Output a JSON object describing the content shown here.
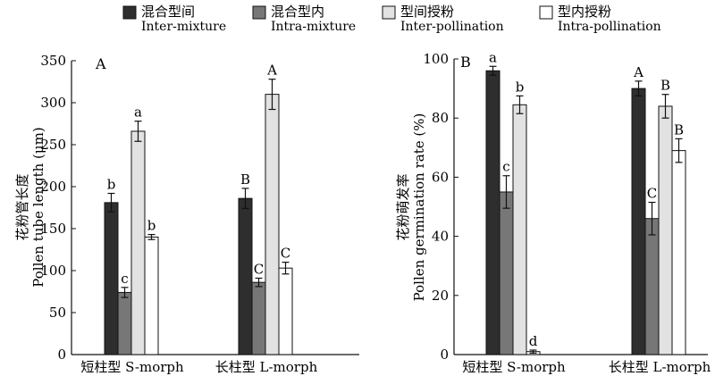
{
  "legend": [
    {
      "zh": "混合型间",
      "en": "Inter-mixture",
      "color": "#2e2e2e"
    },
    {
      "zh": "混合型内",
      "en": "Intra-mixture",
      "color": "#777777"
    },
    {
      "zh": "型间授粉",
      "en": "Inter-pollination",
      "color": "#e2e2e2"
    },
    {
      "zh": "型内授粉",
      "en": "Intra-pollination",
      "color": "#ffffff"
    }
  ],
  "chart_data": [
    {
      "type": "bar",
      "panel_label": "A",
      "ylabel_zh": "花粉管长度",
      "ylabel_en": "Pollen tube length (μm)",
      "ylim": [
        0,
        350
      ],
      "yticks": [
        0,
        50,
        100,
        150,
        200,
        250,
        300,
        350
      ],
      "categories": [
        "短柱型 S-morph",
        "长柱型 L-morph"
      ],
      "series": [
        {
          "name": "Inter-mixture",
          "values": [
            181,
            186
          ],
          "errors": [
            11,
            12
          ],
          "letters": [
            "b",
            "B"
          ]
        },
        {
          "name": "Intra-mixture",
          "values": [
            74,
            86
          ],
          "errors": [
            6,
            5
          ],
          "letters": [
            "c",
            "C"
          ]
        },
        {
          "name": "Inter-pollination",
          "values": [
            266,
            310
          ],
          "errors": [
            12,
            18
          ],
          "letters": [
            "a",
            "A"
          ]
        },
        {
          "name": "Intra-pollination",
          "values": [
            140,
            103
          ],
          "errors": [
            3,
            7
          ],
          "letters": [
            "b",
            "C"
          ]
        }
      ]
    },
    {
      "type": "bar",
      "panel_label": "B",
      "ylabel_zh": "花粉萌发率",
      "ylabel_en": "Pollen germination rate (%)",
      "ylim": [
        0,
        100
      ],
      "yticks": [
        0,
        20,
        40,
        60,
        80,
        100
      ],
      "categories": [
        "短柱型 S-morph",
        "长柱型 L-morph"
      ],
      "series": [
        {
          "name": "Inter-mixture",
          "values": [
            96,
            90
          ],
          "errors": [
            1.5,
            2.5
          ],
          "letters": [
            "a",
            "A"
          ]
        },
        {
          "name": "Intra-mixture",
          "values": [
            55,
            46
          ],
          "errors": [
            5.5,
            5.5
          ],
          "letters": [
            "c",
            "C"
          ]
        },
        {
          "name": "Inter-pollination",
          "values": [
            84.5,
            84
          ],
          "errors": [
            3,
            4
          ],
          "letters": [
            "b",
            "B"
          ]
        },
        {
          "name": "Intra-pollination",
          "values": [
            1,
            69
          ],
          "errors": [
            0.5,
            4
          ],
          "letters": [
            "d",
            "B"
          ]
        }
      ]
    }
  ]
}
